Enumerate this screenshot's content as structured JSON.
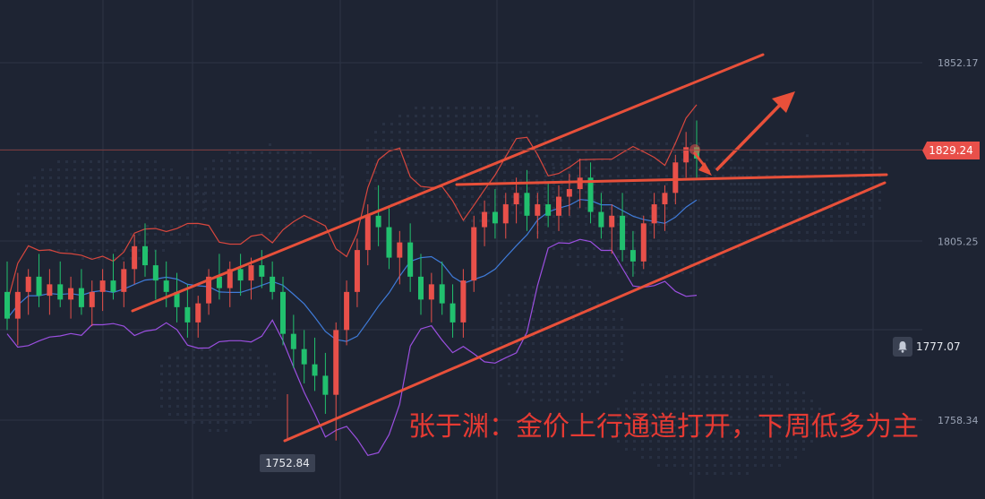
{
  "chart_data": {
    "type": "candlestick",
    "y_ticks": [
      "1852.17",
      "1805.25",
      "1758.34"
    ],
    "ylim": [
      1745,
      1862
    ],
    "current_price": "1829.24",
    "alert_price": "1777.07",
    "low_price": "1752.84",
    "annotation": "张于渊：金价上行通道打开，下周低多为主",
    "colors": {
      "up": "#e8504a",
      "down": "#21c06e",
      "upper_band": "#d8473e",
      "mid_band": "#3f7bd9",
      "lower_band": "#9b4fe0",
      "drawing": "#e8503a",
      "tag": "#e8504a"
    },
    "candles": [
      [
        1792,
        1800,
        1782,
        1785
      ],
      [
        1785,
        1797,
        1778,
        1792
      ],
      [
        1792,
        1798,
        1786,
        1796
      ],
      [
        1796,
        1802,
        1788,
        1791
      ],
      [
        1791,
        1798,
        1786,
        1794
      ],
      [
        1794,
        1800,
        1788,
        1790
      ],
      [
        1790,
        1796,
        1785,
        1793
      ],
      [
        1793,
        1798,
        1786,
        1788
      ],
      [
        1788,
        1795,
        1783,
        1792
      ],
      [
        1792,
        1798,
        1787,
        1795
      ],
      [
        1795,
        1802,
        1790,
        1792
      ],
      [
        1792,
        1800,
        1788,
        1798
      ],
      [
        1798,
        1807,
        1794,
        1804
      ],
      [
        1804,
        1810,
        1796,
        1799
      ],
      [
        1799,
        1803,
        1790,
        1795
      ],
      [
        1795,
        1800,
        1788,
        1792
      ],
      [
        1792,
        1797,
        1784,
        1788
      ],
      [
        1788,
        1794,
        1780,
        1784
      ],
      [
        1784,
        1791,
        1780,
        1789
      ],
      [
        1789,
        1798,
        1786,
        1796
      ],
      [
        1796,
        1802,
        1790,
        1793
      ],
      [
        1793,
        1800,
        1788,
        1798
      ],
      [
        1798,
        1802,
        1791,
        1795
      ],
      [
        1795,
        1801,
        1790,
        1799
      ],
      [
        1799,
        1803,
        1793,
        1796
      ],
      [
        1796,
        1800,
        1790,
        1792
      ],
      [
        1792,
        1796,
        1778,
        1781
      ],
      [
        1781,
        1786,
        1772,
        1777
      ],
      [
        1777,
        1782,
        1768,
        1773
      ],
      [
        1773,
        1780,
        1766,
        1770
      ],
      [
        1770,
        1776,
        1760,
        1765
      ],
      [
        1765,
        1784,
        1753,
        1782
      ],
      [
        1782,
        1795,
        1778,
        1792
      ],
      [
        1792,
        1806,
        1788,
        1803
      ],
      [
        1803,
        1815,
        1799,
        1812
      ],
      [
        1812,
        1820,
        1804,
        1809
      ],
      [
        1809,
        1814,
        1798,
        1801
      ],
      [
        1801,
        1808,
        1794,
        1805
      ],
      [
        1805,
        1810,
        1792,
        1796
      ],
      [
        1796,
        1802,
        1786,
        1790
      ],
      [
        1790,
        1797,
        1784,
        1794
      ],
      [
        1794,
        1800,
        1786,
        1789
      ],
      [
        1789,
        1794,
        1780,
        1784
      ],
      [
        1784,
        1798,
        1780,
        1795
      ],
      [
        1795,
        1812,
        1792,
        1809
      ],
      [
        1809,
        1816,
        1804,
        1813
      ],
      [
        1813,
        1819,
        1806,
        1810
      ],
      [
        1810,
        1818,
        1806,
        1815
      ],
      [
        1815,
        1822,
        1810,
        1818
      ],
      [
        1818,
        1824,
        1808,
        1812
      ],
      [
        1812,
        1818,
        1806,
        1815
      ],
      [
        1815,
        1821,
        1809,
        1812
      ],
      [
        1812,
        1820,
        1808,
        1817
      ],
      [
        1817,
        1823,
        1812,
        1819
      ],
      [
        1819,
        1827,
        1814,
        1822
      ],
      [
        1822,
        1826,
        1810,
        1813
      ],
      [
        1813,
        1818,
        1806,
        1809
      ],
      [
        1809,
        1815,
        1802,
        1812
      ],
      [
        1812,
        1818,
        1800,
        1803
      ],
      [
        1803,
        1808,
        1796,
        1800
      ],
      [
        1800,
        1812,
        1798,
        1810
      ],
      [
        1810,
        1818,
        1806,
        1815
      ],
      [
        1815,
        1820,
        1808,
        1818
      ],
      [
        1818,
        1828,
        1815,
        1826
      ],
      [
        1826,
        1834,
        1822,
        1830
      ],
      [
        1830,
        1837,
        1822,
        1827
      ]
    ]
  }
}
